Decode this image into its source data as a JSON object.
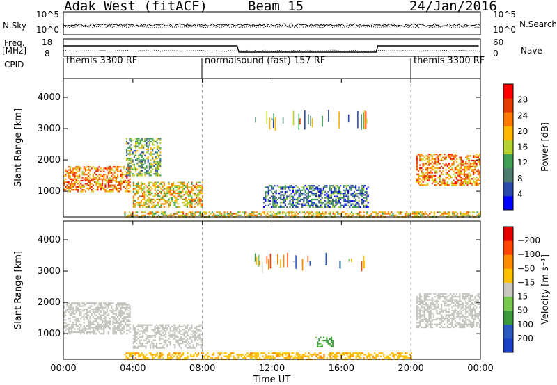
{
  "header": {
    "radar": "Adak West (fitACF)",
    "beam": "Beam 15",
    "date": "24/Jan/2016"
  },
  "side_labels": {
    "nsky": "N.Sky",
    "nsky_tick_top": "10^5",
    "nsky_tick_bottom": "10^0",
    "nsearch": "N.Search",
    "nsearch_tick_top": "10^5",
    "nsearch_tick_bottom": "10^0",
    "freq": "Freq.",
    "freq_unit": "[MHz]",
    "freq_tick_top": "18",
    "freq_tick_bottom": "8",
    "nave": "Nave",
    "nave_tick_top": "60",
    "nave_tick_bottom": "0",
    "cpid": "CPID"
  },
  "cpid_segments": [
    {
      "name": "themis 3300 RF",
      "start_hour": 0,
      "end_hour": 8
    },
    {
      "name": "normalsound (fast) 157 RF",
      "start_hour": 8,
      "end_hour": 20
    },
    {
      "name": "themis 3300 RF",
      "start_hour": 20,
      "end_hour": 24
    }
  ],
  "colors": {
    "power_scale": [
      "#0000ff",
      "#2a4aa8",
      "#4d7d6f",
      "#3fa055",
      "#b5d230",
      "#ffb800",
      "#ff7a00",
      "#e63b00",
      "#ff0000"
    ],
    "velocity_scale": [
      "#e50000",
      "#ff4500",
      "#ff8c00",
      "#ffc000",
      "#c8c8c0",
      "#78c850",
      "#3c9a3c",
      "#2a5ac0",
      "#1a40c8"
    ],
    "ground_scatter": "#c3c2bd"
  },
  "chart_data": [
    {
      "type": "heatmap",
      "title": "",
      "xlabel": "",
      "ylabel": "Slant Range [km]",
      "xlim_hours": [
        0,
        24
      ],
      "ylim": [
        180,
        4600
      ],
      "yticks": [
        1000,
        2000,
        3000,
        4000
      ],
      "colorbar": {
        "label": "Power [dB]",
        "range": [
          0,
          31
        ],
        "ticks": [
          "4",
          "8",
          "12",
          "16",
          "20",
          "24",
          "28"
        ]
      },
      "echo_regions": [
        {
          "name": "",
          "hours": [
            0.0,
            3.8
          ],
          "range_km": [
            1000,
            1800
          ],
          "value_db": 22
        },
        {
          "name": "",
          "hours": [
            3.6,
            5.6
          ],
          "range_km": [
            1500,
            2700
          ],
          "value_db": 12
        },
        {
          "name": "",
          "hours": [
            4.0,
            8.0
          ],
          "range_km": [
            500,
            1300
          ],
          "value_db": 18
        },
        {
          "name": "",
          "hours": [
            3.5,
            24.0
          ],
          "range_km": [
            200,
            350
          ],
          "value_db": 18
        },
        {
          "name": "",
          "hours": [
            11.5,
            17.5
          ],
          "range_km": [
            500,
            1200
          ],
          "value_db": 8
        },
        {
          "name": "",
          "hours": [
            20.3,
            24.0
          ],
          "range_km": [
            1200,
            2200
          ],
          "value_db": 22
        }
      ]
    },
    {
      "type": "heatmap",
      "title": "",
      "xlabel": "Time UT",
      "ylabel": "Slant Range [km]",
      "xlim_hours": [
        0,
        24
      ],
      "ylim": [
        180,
        4600
      ],
      "yticks": [
        1000,
        2000,
        3000,
        4000
      ],
      "xticks": [
        "00:00",
        "04:00",
        "08:00",
        "12:00",
        "16:00",
        "20:00",
        "00:00"
      ],
      "colorbar": {
        "label": "Velocity [m s⁻¹]",
        "ticks": [
          "200",
          "100",
          "50",
          "15",
          "−15",
          "−50",
          "−100",
          "−200"
        ]
      },
      "echo_regions": [
        {
          "name": "",
          "hours": [
            0.0,
            3.8
          ],
          "range_km": [
            1000,
            2000
          ],
          "value_ms": 0
        },
        {
          "name": "",
          "hours": [
            4.0,
            8.0
          ],
          "range_km": [
            550,
            1300
          ],
          "value_ms": 0
        },
        {
          "name": "",
          "hours": [
            3.5,
            20.0
          ],
          "range_km": [
            200,
            400
          ],
          "value_ms": -40
        },
        {
          "name": "",
          "hours": [
            20.3,
            24.0
          ],
          "range_km": [
            1200,
            2300
          ],
          "value_ms": 0
        },
        {
          "name": "",
          "hours": [
            14.5,
            15.5
          ],
          "range_km": [
            600,
            900
          ],
          "value_ms": 60
        }
      ]
    }
  ]
}
